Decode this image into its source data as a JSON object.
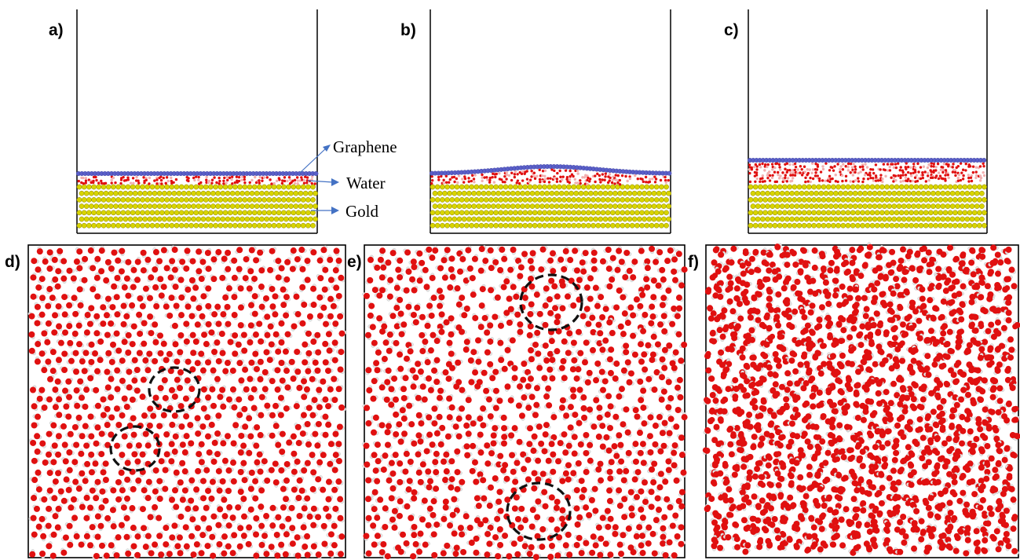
{
  "panels": {
    "a": {
      "label": "a)",
      "graphene_shape": "flat",
      "water_layer": "thin"
    },
    "b": {
      "label": "b)",
      "graphene_shape": "bulged",
      "water_layer": "thin-with-bulge"
    },
    "c": {
      "label": "c)",
      "graphene_shape": "flat-raised",
      "water_layer": "thick"
    },
    "d": {
      "label": "d)",
      "ordering": "ordered",
      "highlight_circles": 2
    },
    "e": {
      "label": "e)",
      "ordering": "partially-ordered",
      "highlight_circles": 2
    },
    "f": {
      "label": "f)",
      "ordering": "disordered",
      "highlight_circles": 0
    }
  },
  "legend": {
    "graphene": "Graphene",
    "water": "Water",
    "gold": "Gold"
  },
  "colors": {
    "graphene": "#5a5fc8",
    "oxygen": "#e01010",
    "hydrogen": "#e8e8e8",
    "gold": "#d8d400",
    "gold_stroke": "#8a8400",
    "arrow": "#4472c4",
    "frame": "#000000"
  }
}
